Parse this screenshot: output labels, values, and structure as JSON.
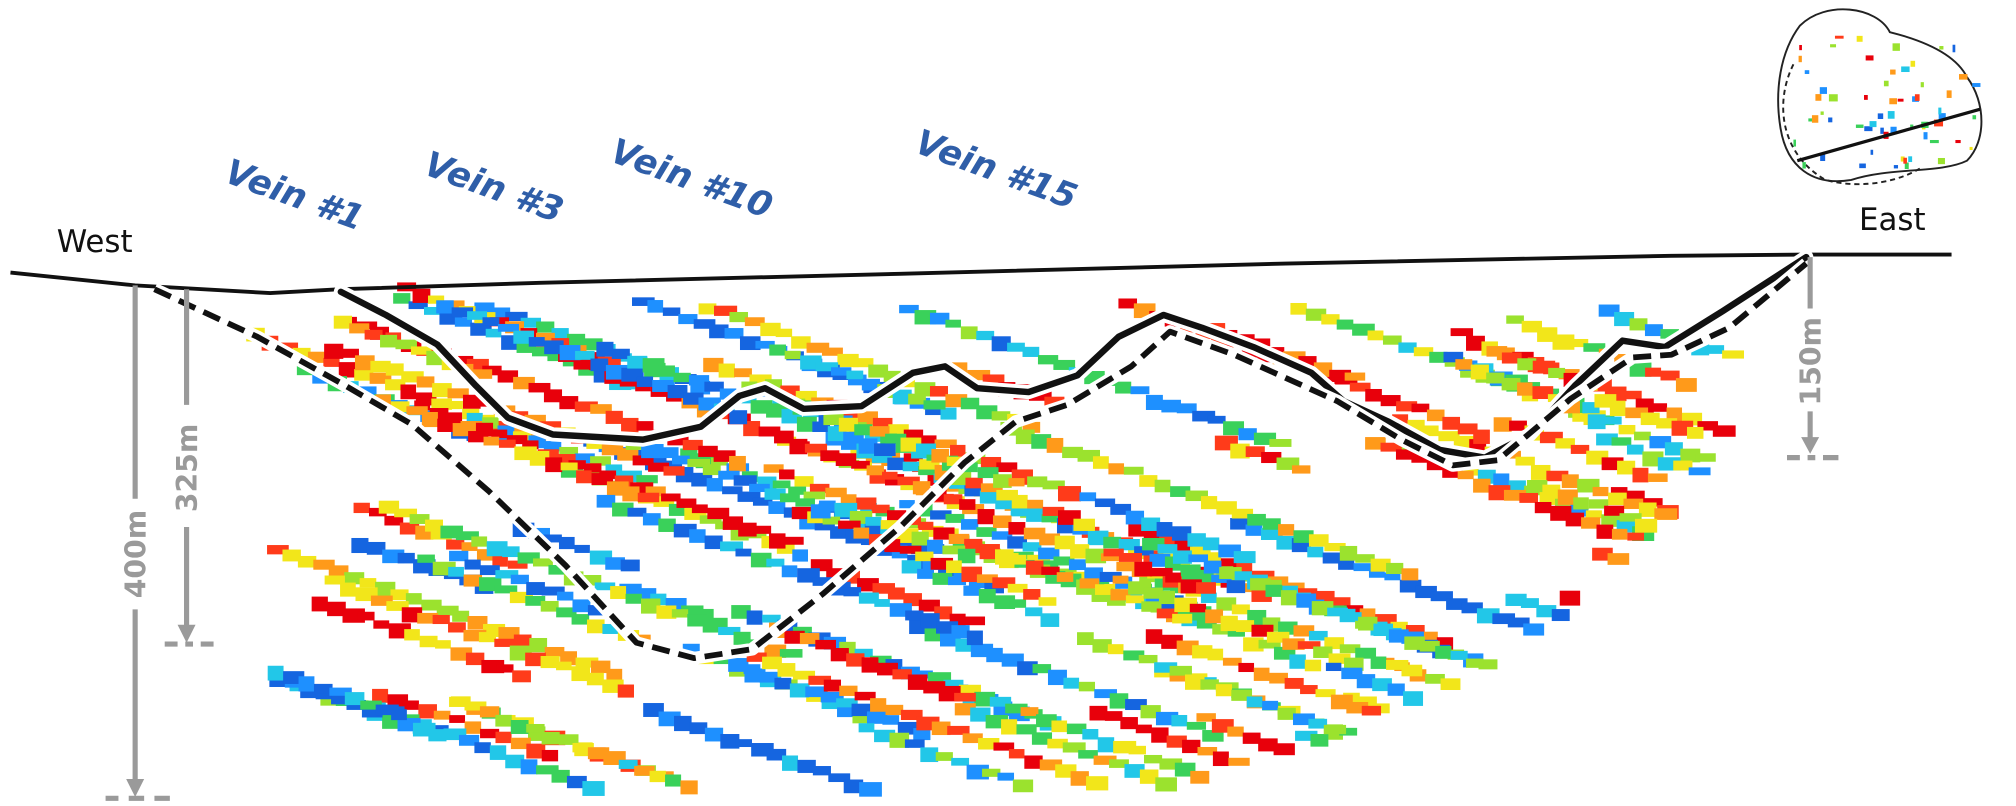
{
  "directions": {
    "west": "West",
    "east": "East"
  },
  "veins": [
    "Vein #1",
    "Vein #3",
    "Vein #10",
    "Vein #15"
  ],
  "depths": [
    "400m",
    "325m",
    "150m"
  ]
}
